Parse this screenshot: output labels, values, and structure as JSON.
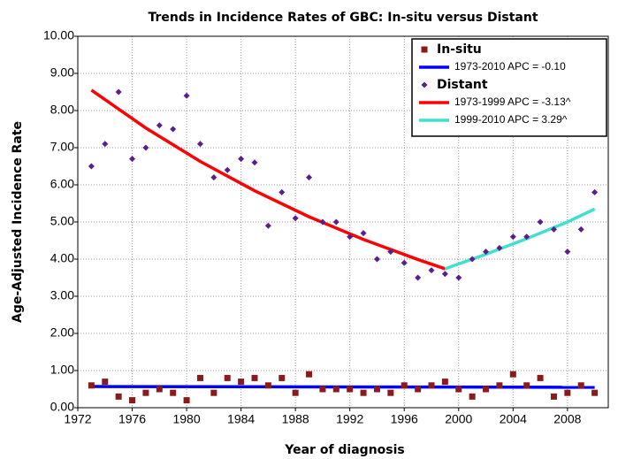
{
  "chart_data": {
    "type": "scatter",
    "title": "Trends in Incidence Rates of GBC: In-situ versus Distant",
    "x_label": "Year of diagnosis",
    "y_label": "Age-Adjusted Incidence Rate",
    "xlim": [
      1972,
      2011
    ],
    "xticks": [
      1972,
      1976,
      1980,
      1984,
      1988,
      1992,
      1996,
      2000,
      2004,
      2008
    ],
    "ylim": [
      0,
      10
    ],
    "yticks": [
      {
        "value": 0,
        "label": "0.00"
      },
      {
        "value": 1,
        "label": "1.00"
      },
      {
        "value": 2,
        "label": "2.00"
      },
      {
        "value": 3,
        "label": "3.00"
      },
      {
        "value": 4,
        "label": "4.00"
      },
      {
        "value": 5,
        "label": "5.00"
      },
      {
        "value": 6,
        "label": "6.00"
      },
      {
        "value": 7,
        "label": "7.00"
      },
      {
        "value": 8,
        "label": "8.00"
      },
      {
        "value": 9,
        "label": "9.00"
      },
      {
        "value": 10,
        "label": "10.00"
      }
    ],
    "grid": true,
    "legend": "top-right",
    "series": [
      {
        "name": "In-situ",
        "type": "scatter",
        "marker": "square",
        "color": "#8b1a1a",
        "x": [
          1973,
          1974,
          1975,
          1976,
          1977,
          1978,
          1979,
          1980,
          1981,
          1982,
          1983,
          1984,
          1985,
          1986,
          1987,
          1988,
          1989,
          1990,
          1991,
          1992,
          1993,
          1994,
          1995,
          1996,
          1997,
          1998,
          1999,
          2000,
          2001,
          2002,
          2003,
          2004,
          2005,
          2006,
          2007,
          2008,
          2009,
          2010
        ],
        "values": [
          0.6,
          0.7,
          0.3,
          0.2,
          0.4,
          0.5,
          0.4,
          0.2,
          0.8,
          0.4,
          0.8,
          0.7,
          0.8,
          0.6,
          0.8,
          0.4,
          0.9,
          0.5,
          0.5,
          0.5,
          0.4,
          0.5,
          0.4,
          0.6,
          0.5,
          0.6,
          0.7,
          0.5,
          0.3,
          0.5,
          0.6,
          0.9,
          0.6,
          0.8,
          0.3,
          0.4,
          0.6,
          0.4
        ]
      },
      {
        "name": "1973-2010 APC  = -0.10",
        "type": "line",
        "color": "#0000ff",
        "x": [
          1973,
          2010
        ],
        "values": [
          0.57,
          0.55
        ]
      },
      {
        "name": "Distant",
        "type": "scatter",
        "marker": "diamond",
        "color": "#5b1e8f",
        "x": [
          1973,
          1974,
          1975,
          1976,
          1977,
          1978,
          1979,
          1980,
          1981,
          1982,
          1983,
          1984,
          1985,
          1986,
          1987,
          1988,
          1989,
          1990,
          1991,
          1992,
          1993,
          1994,
          1995,
          1996,
          1997,
          1998,
          1999,
          2000,
          2001,
          2002,
          2003,
          2004,
          2005,
          2006,
          2007,
          2008,
          2009,
          2010
        ],
        "values": [
          6.5,
          7.1,
          8.5,
          6.7,
          7.0,
          7.6,
          7.5,
          8.4,
          7.1,
          6.2,
          6.4,
          6.7,
          6.6,
          4.9,
          5.8,
          5.1,
          6.2,
          5.0,
          5.0,
          4.6,
          4.7,
          4.0,
          4.2,
          3.9,
          3.5,
          3.7,
          3.6,
          3.5,
          4.0,
          4.2,
          4.3,
          4.6,
          4.6,
          5.0,
          4.8,
          4.2,
          4.8,
          5.8
        ]
      },
      {
        "name": "1973-1999 APC  = -3.13^",
        "type": "line",
        "color": "#ff0000",
        "x": [
          1973,
          1977,
          1981,
          1985,
          1989,
          1993,
          1997,
          1999
        ],
        "values": [
          8.55,
          7.53,
          6.63,
          5.84,
          5.14,
          4.53,
          3.99,
          3.74
        ]
      },
      {
        "name": "1999-2010 APC  =  3.29^",
        "type": "line",
        "color": "#40e0d0",
        "x": [
          1999,
          2002,
          2005,
          2008,
          2010
        ],
        "values": [
          3.74,
          4.13,
          4.55,
          5.0,
          5.35
        ]
      }
    ]
  }
}
